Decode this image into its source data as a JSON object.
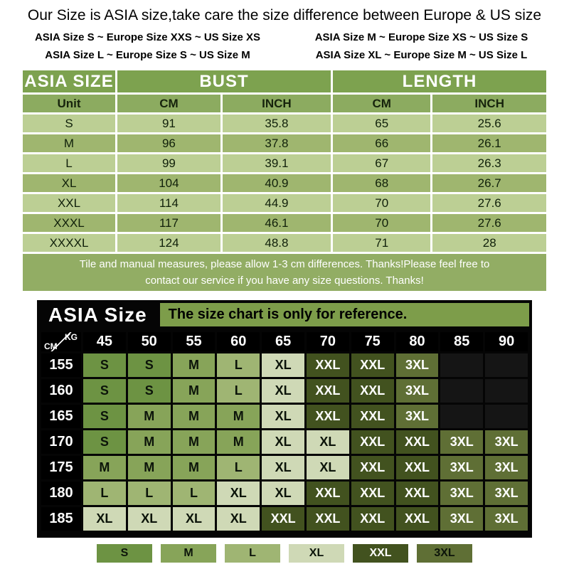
{
  "page": {
    "title": "Our Size is ASIA size,take care the size difference between Europe & US size",
    "conversions": [
      "ASIA Size S  ~  Europe Size XXS  ~  US Size XS",
      "ASIA Size M  ~  Europe Size XS  ~  US Size S",
      "ASIA Size L ~  Europe Size S  ~  US Size M",
      "ASIA Size XL ~  Europe Size M  ~  US Size L"
    ]
  },
  "size_table": {
    "header": {
      "size_col": "ASIA SIZE",
      "bust": "BUST",
      "length": "LENGTH"
    },
    "unit_row": [
      "Unit",
      "CM",
      "INCH",
      "CM",
      "INCH"
    ],
    "rows": [
      {
        "size": "S",
        "bust_cm": "91",
        "bust_in": "35.8",
        "len_cm": "65",
        "len_in": "25.6"
      },
      {
        "size": "M",
        "bust_cm": "96",
        "bust_in": "37.8",
        "len_cm": "66",
        "len_in": "26.1"
      },
      {
        "size": "L",
        "bust_cm": "99",
        "bust_in": "39.1",
        "len_cm": "67",
        "len_in": "26.3"
      },
      {
        "size": "XL",
        "bust_cm": "104",
        "bust_in": "40.9",
        "len_cm": "68",
        "len_in": "26.7"
      },
      {
        "size": "XXL",
        "bust_cm": "114",
        "bust_in": "44.9",
        "len_cm": "70",
        "len_in": "27.6"
      },
      {
        "size": "XXXL",
        "bust_cm": "117",
        "bust_in": "46.1",
        "len_cm": "70",
        "len_in": "27.6"
      },
      {
        "size": "XXXXL",
        "bust_cm": "124",
        "bust_in": "48.8",
        "len_cm": "71",
        "len_in": "28"
      }
    ],
    "note_line1": "Tile and manual measures, please allow 1-3 cm differences. Thanks!Please feel free to",
    "note_line2": "contact our service if you have any size questions. Thanks!"
  },
  "weight_chart": {
    "title": "ASIA Size",
    "subtitle": "The size chart is only for reference.",
    "corner": {
      "top": "KG",
      "bottom": "CM"
    },
    "weights": [
      "45",
      "50",
      "55",
      "60",
      "65",
      "70",
      "75",
      "80",
      "85",
      "90"
    ],
    "heights": [
      "155",
      "160",
      "165",
      "170",
      "175",
      "180",
      "185"
    ],
    "cells": [
      [
        "S",
        "S",
        "M",
        "L",
        "XL",
        "XXL",
        "XXL",
        "3XL",
        "",
        ""
      ],
      [
        "S",
        "S",
        "M",
        "L",
        "XL",
        "XXL",
        "XXL",
        "3XL",
        "",
        ""
      ],
      [
        "S",
        "M",
        "M",
        "M",
        "XL",
        "XXL",
        "XXL",
        "3XL",
        "",
        ""
      ],
      [
        "S",
        "M",
        "M",
        "M",
        "XL",
        "XL",
        "XXL",
        "XXL",
        "3XL",
        "3XL"
      ],
      [
        "M",
        "M",
        "M",
        "L",
        "XL",
        "XL",
        "XXL",
        "XXL",
        "3XL",
        "3XL"
      ],
      [
        "L",
        "L",
        "L",
        "XL",
        "XL",
        "XXL",
        "XXL",
        "XXL",
        "3XL",
        "3XL"
      ],
      [
        "XL",
        "XL",
        "XL",
        "XL",
        "XXL",
        "XXL",
        "XXL",
        "XXL",
        "3XL",
        "3XL"
      ]
    ],
    "legend": [
      "S",
      "M",
      "L",
      "XL",
      "XXL",
      "3XL"
    ],
    "colors": {
      "S": "#6d9343",
      "M": "#87a459",
      "L": "#9fb573",
      "XL": "#cfd9b6",
      "XXL": "#42521f",
      "3XL": "#5f6f35",
      "empty": "#151515"
    }
  }
}
